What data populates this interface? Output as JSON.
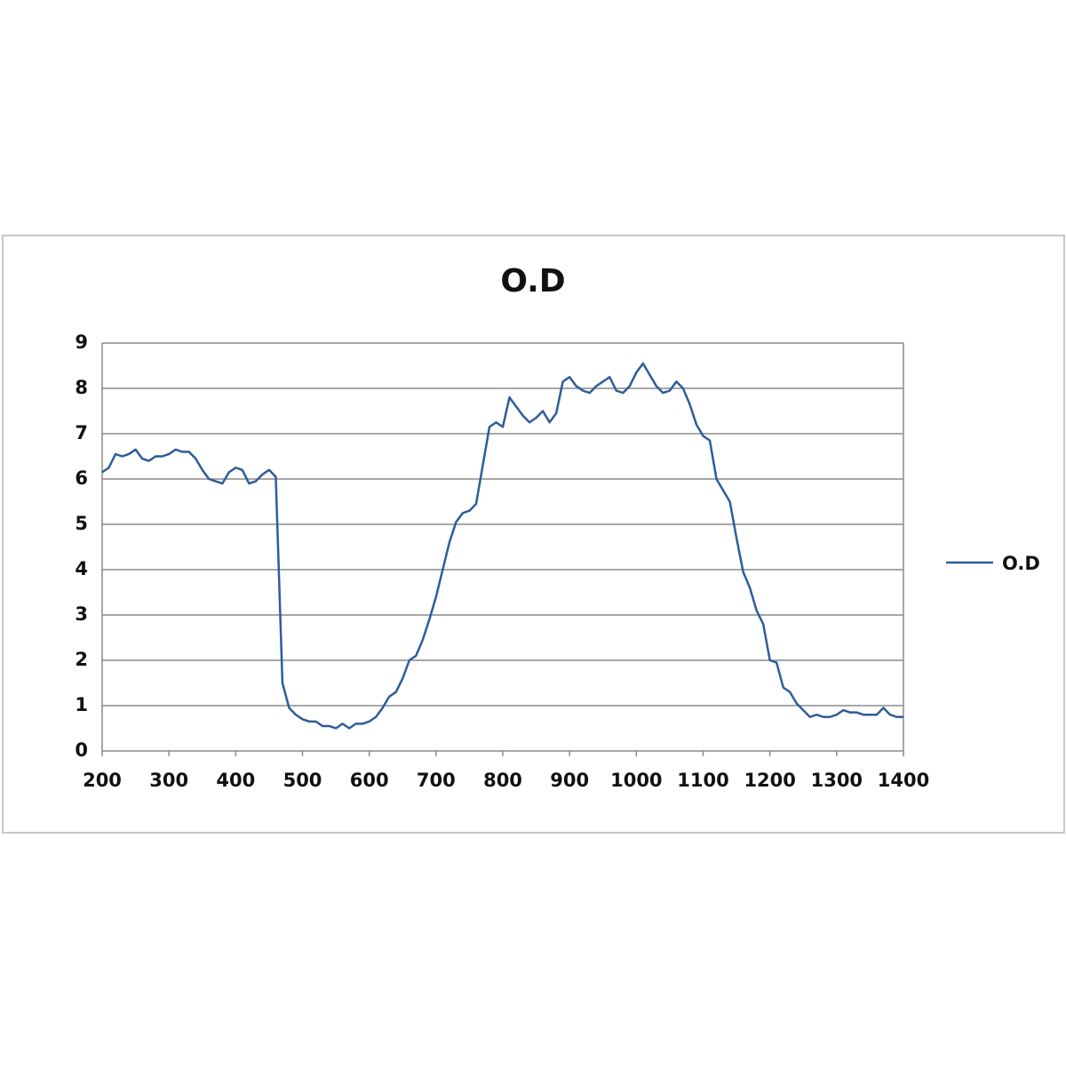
{
  "chart_data": {
    "type": "line",
    "title": "O.D",
    "x": [
      200,
      210,
      220,
      230,
      240,
      250,
      260,
      270,
      280,
      290,
      300,
      310,
      320,
      330,
      340,
      350,
      360,
      370,
      380,
      390,
      400,
      410,
      420,
      430,
      440,
      450,
      460,
      470,
      480,
      490,
      500,
      510,
      520,
      530,
      540,
      550,
      560,
      570,
      580,
      590,
      600,
      610,
      620,
      630,
      640,
      650,
      660,
      670,
      680,
      690,
      700,
      710,
      720,
      730,
      740,
      750,
      760,
      770,
      780,
      790,
      800,
      810,
      820,
      830,
      840,
      850,
      860,
      870,
      880,
      890,
      900,
      910,
      920,
      930,
      940,
      950,
      960,
      970,
      980,
      990,
      1000,
      1010,
      1020,
      1030,
      1040,
      1050,
      1060,
      1070,
      1080,
      1090,
      1100,
      1110,
      1120,
      1130,
      1140,
      1150,
      1160,
      1170,
      1180,
      1190,
      1200,
      1210,
      1220,
      1230,
      1240,
      1250,
      1260,
      1270,
      1280,
      1290,
      1300,
      1310,
      1320,
      1330,
      1340,
      1350,
      1360,
      1370,
      1380,
      1390,
      1400
    ],
    "series": [
      {
        "name": "O.D",
        "color": "#2e5c9a",
        "values": [
          6.15,
          6.25,
          6.55,
          6.5,
          6.55,
          6.65,
          6.45,
          6.4,
          6.5,
          6.5,
          6.55,
          6.65,
          6.6,
          6.6,
          6.45,
          6.2,
          6.0,
          5.95,
          5.9,
          6.15,
          6.25,
          6.2,
          5.9,
          5.95,
          6.1,
          6.2,
          6.05,
          1.5,
          0.95,
          0.8,
          0.7,
          0.65,
          0.65,
          0.55,
          0.55,
          0.5,
          0.6,
          0.5,
          0.6,
          0.6,
          0.65,
          0.75,
          0.95,
          1.2,
          1.3,
          1.6,
          2.0,
          2.1,
          2.45,
          2.9,
          3.4,
          4.0,
          4.6,
          5.05,
          5.25,
          5.3,
          5.45,
          6.3,
          7.15,
          7.25,
          7.15,
          7.8,
          7.6,
          7.4,
          7.25,
          7.35,
          7.5,
          7.25,
          7.45,
          8.15,
          8.25,
          8.05,
          7.95,
          7.9,
          8.05,
          8.15,
          8.25,
          7.95,
          7.9,
          8.05,
          8.35,
          8.55,
          8.3,
          8.05,
          7.9,
          7.95,
          8.15,
          8.0,
          7.65,
          7.2,
          6.95,
          6.85,
          6.0,
          5.75,
          5.5,
          4.7,
          3.95,
          3.6,
          3.1,
          2.8,
          2.0,
          1.95,
          1.4,
          1.3,
          1.05,
          0.9,
          0.75,
          0.8,
          0.75,
          0.75,
          0.8,
          0.9,
          0.85,
          0.85,
          0.8,
          0.8,
          0.8,
          0.95,
          0.8,
          0.75,
          0.75
        ]
      }
    ],
    "xlim": [
      200,
      1400
    ],
    "xticks": [
      200,
      300,
      400,
      500,
      600,
      700,
      800,
      900,
      1000,
      1100,
      1200,
      1300,
      1400
    ],
    "ylim": [
      0,
      9
    ],
    "yticks": [
      0,
      1,
      2,
      3,
      4,
      5,
      6,
      7,
      8,
      9
    ],
    "grid": true,
    "legend": "right"
  }
}
